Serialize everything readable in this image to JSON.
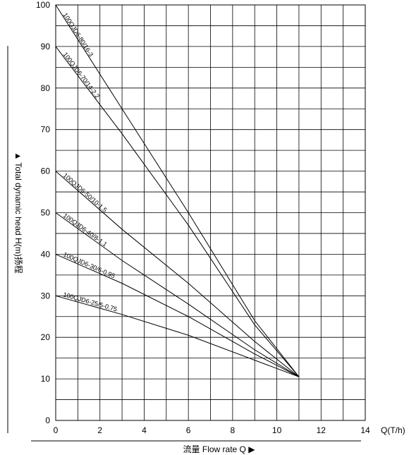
{
  "chart_data": {
    "type": "line",
    "xlabel": "Q(T/h)",
    "ylabel": "▲ Total dynamic head H(m)扬程",
    "bottom_label": "流量 Flow rate Q ▶",
    "xlim": [
      0,
      14
    ],
    "ylim": [
      0,
      100
    ],
    "x_ticks": [
      "0",
      "2",
      "4",
      "6",
      "8",
      "10",
      "12",
      "14"
    ],
    "y_ticks": [
      "0",
      "10",
      "20",
      "30",
      "40",
      "50",
      "60",
      "70",
      "80",
      "90",
      "100"
    ],
    "grid": true,
    "series": [
      {
        "name": "100QJD6-80/16-3",
        "x": [
          0,
          3,
          6,
          9,
          11
        ],
        "y": [
          100,
          75,
          50,
          24,
          10.5
        ]
      },
      {
        "name": "100QJD6-70/14-2.2",
        "x": [
          0,
          3,
          6,
          9,
          11
        ],
        "y": [
          90,
          69,
          47,
          23,
          10.5
        ]
      },
      {
        "name": "100QJD6-50/10-1.5",
        "x": [
          0,
          3,
          6,
          9,
          11
        ],
        "y": [
          60,
          46,
          33,
          19,
          10.5
        ]
      },
      {
        "name": "100QJD6-40/8-1.1",
        "x": [
          0,
          3,
          6,
          9,
          11
        ],
        "y": [
          50,
          38.5,
          28,
          17,
          10.5
        ]
      },
      {
        "name": "100QJD6-30/6-0.95",
        "x": [
          0,
          3,
          6,
          9,
          11
        ],
        "y": [
          40,
          33,
          25,
          16,
          10.5
        ]
      },
      {
        "name": "100QJD6-25/5-0.75",
        "x": [
          0,
          3,
          6,
          9,
          11
        ],
        "y": [
          30,
          25.5,
          20.5,
          14.5,
          10.5
        ]
      }
    ]
  }
}
